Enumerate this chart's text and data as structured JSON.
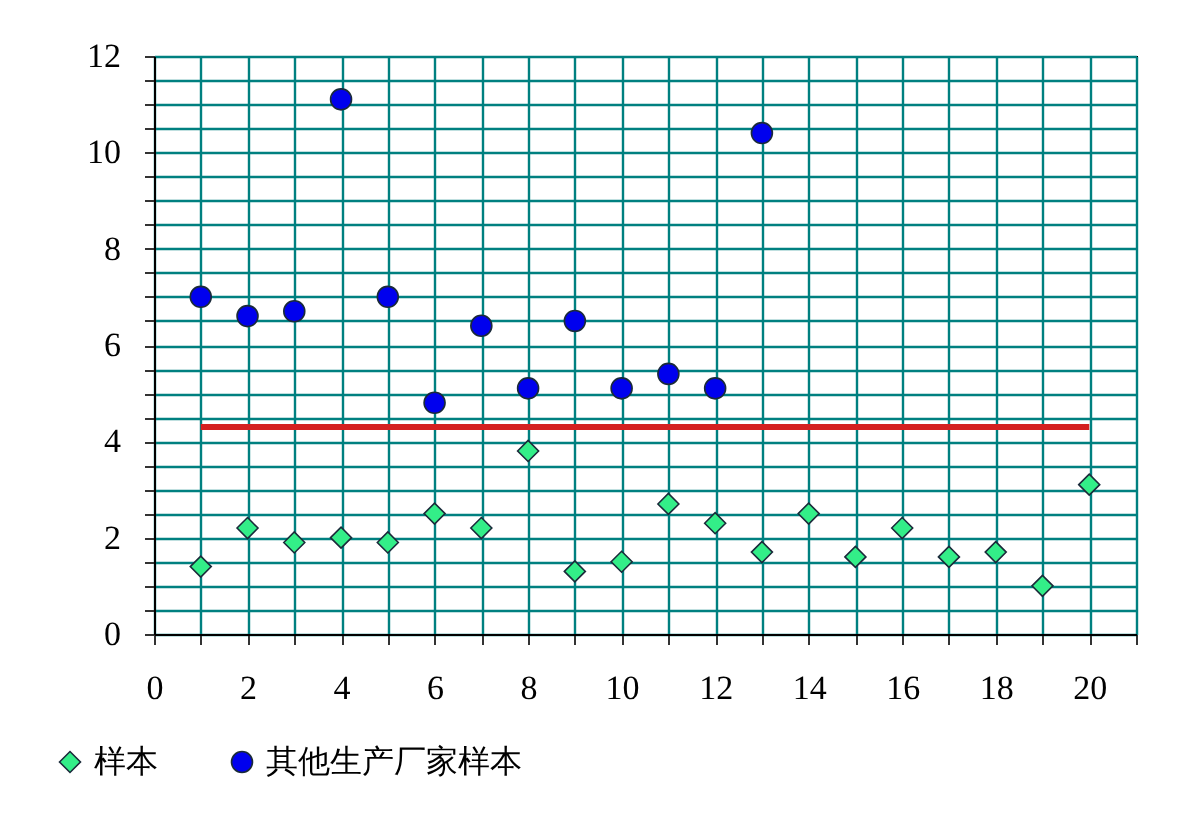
{
  "chart_data": {
    "type": "scatter",
    "xlim": [
      0,
      21
    ],
    "ylim": [
      0,
      12
    ],
    "xticks": [
      0,
      {
        "value": 1,
        "label": null
      },
      2,
      {
        "value": 3,
        "label": null
      },
      4,
      {
        "value": 5,
        "label": null
      },
      6,
      {
        "value": 7,
        "label": null
      },
      8,
      {
        "value": 9,
        "label": null
      },
      10,
      {
        "value": 11,
        "label": null
      },
      12,
      {
        "value": 13,
        "label": null
      },
      14,
      {
        "value": 15,
        "label": null
      },
      16,
      {
        "value": 17,
        "label": null
      },
      18,
      {
        "value": 19,
        "label": null
      },
      20,
      {
        "value": 21,
        "label": null
      }
    ],
    "yticks": [
      0,
      {
        "value": 0.5,
        "label": null
      },
      {
        "value": 1,
        "label": null
      },
      {
        "value": 1.5,
        "label": null
      },
      2,
      {
        "value": 2.5,
        "label": null
      },
      {
        "value": 3,
        "label": null
      },
      {
        "value": 3.5,
        "label": null
      },
      4,
      {
        "value": 4.5,
        "label": null
      },
      {
        "value": 5,
        "label": null
      },
      {
        "value": 5.5,
        "label": null
      },
      6,
      {
        "value": 6.5,
        "label": null
      },
      {
        "value": 7,
        "label": null
      },
      {
        "value": 7.5,
        "label": null
      },
      8,
      {
        "value": 8.5,
        "label": null
      },
      {
        "value": 9,
        "label": null
      },
      {
        "value": 9.5,
        "label": null
      },
      10,
      {
        "value": 10.5,
        "label": null
      },
      {
        "value": 11,
        "label": null
      },
      {
        "value": 11.5,
        "label": null
      },
      12
    ],
    "grid": true,
    "legend": "bottom",
    "series": [
      {
        "name": "样本",
        "marker": "diamond",
        "color": "#33ee88",
        "x": [
          1,
          2,
          3,
          4,
          5,
          6,
          7,
          8,
          9,
          10,
          11,
          12,
          13,
          14,
          15,
          16,
          17,
          18,
          19,
          20
        ],
        "values": [
          1.4,
          2.2,
          1.9,
          2.0,
          1.9,
          2.5,
          2.2,
          3.8,
          1.3,
          1.5,
          2.7,
          2.3,
          1.7,
          2.5,
          1.6,
          2.2,
          1.6,
          1.7,
          1.0,
          3.1
        ]
      },
      {
        "name": "其他生产厂家样本",
        "marker": "circle",
        "color": "#0000ee",
        "x": [
          1,
          2,
          3,
          4,
          5,
          6,
          7,
          8,
          9,
          10,
          11,
          12,
          13
        ],
        "values": [
          7.0,
          6.6,
          6.7,
          11.1,
          7.0,
          4.8,
          6.4,
          5.1,
          6.5,
          5.1,
          5.4,
          5.1,
          10.4
        ]
      },
      {
        "type": "line",
        "color": "#d42020",
        "x": [
          1,
          20
        ],
        "values": [
          4.3,
          4.3
        ]
      }
    ]
  }
}
